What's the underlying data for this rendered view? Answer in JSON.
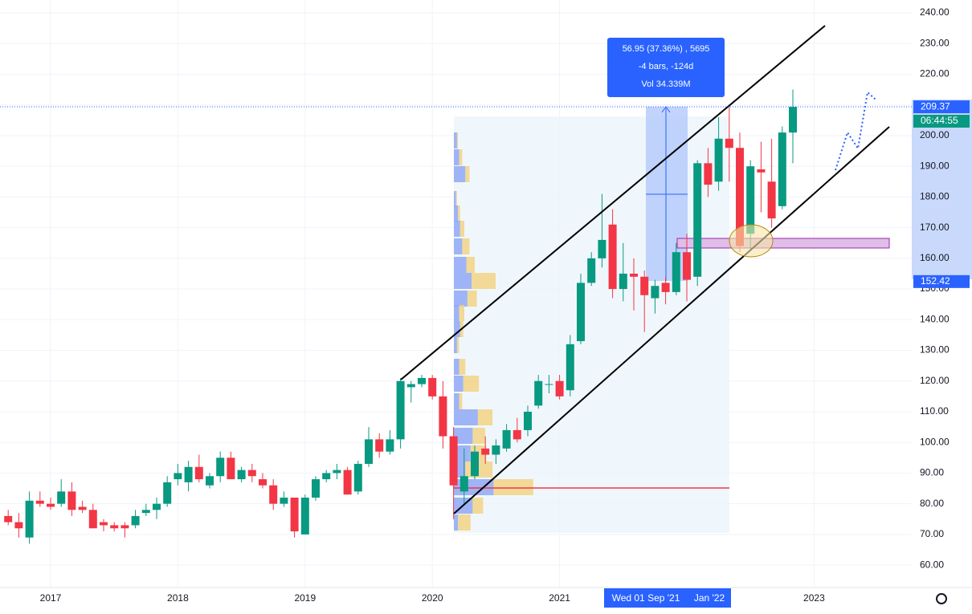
{
  "chart_data": {
    "type": "candlestick",
    "x": [
      "2016-09",
      "2016-10",
      "2016-11",
      "2016-12",
      "2017-01",
      "2017-02",
      "2017-03",
      "2017-04",
      "2017-05",
      "2017-06",
      "2017-07",
      "2017-08",
      "2017-09",
      "2017-10",
      "2017-11",
      "2017-12",
      "2018-01",
      "2018-02",
      "2018-03",
      "2018-04",
      "2018-05",
      "2018-06",
      "2018-07",
      "2018-08",
      "2018-09",
      "2018-10",
      "2018-11",
      "2018-12",
      "2019-01",
      "2019-02",
      "2019-03",
      "2019-04",
      "2019-05",
      "2019-06",
      "2019-07",
      "2019-08",
      "2019-09",
      "2019-10",
      "2019-11",
      "2019-12",
      "2020-01",
      "2020-02",
      "2020-03",
      "2020-04",
      "2020-05",
      "2020-06",
      "2020-07",
      "2020-08",
      "2020-09",
      "2020-10",
      "2020-11",
      "2020-12",
      "2021-01",
      "2021-02",
      "2021-03",
      "2021-04",
      "2021-05",
      "2021-06",
      "2021-07",
      "2021-08",
      "2021-09",
      "2021-10",
      "2021-11",
      "2021-12",
      "2022-01",
      "2022-02",
      "2022-03",
      "2022-04",
      "2022-05",
      "2022-06",
      "2022-07",
      "2022-08",
      "2022-09",
      "2022-10",
      "2022-11"
    ],
    "open": [
      76,
      74,
      69,
      81,
      80,
      80,
      84,
      79,
      78,
      74,
      73,
      73,
      73,
      77,
      78,
      80,
      88,
      87,
      92,
      86,
      89,
      95,
      88,
      91,
      88,
      86,
      80,
      82,
      70,
      82,
      88,
      90,
      91,
      84,
      93,
      101,
      97,
      101,
      118,
      119,
      121,
      115,
      102,
      84,
      89,
      98,
      96,
      98,
      104,
      104,
      112,
      119,
      120,
      117,
      133,
      152,
      160,
      171,
      150,
      155,
      154,
      147,
      152,
      149,
      162,
      154,
      191,
      185,
      199,
      196,
      168,
      189,
      185,
      177,
      201
    ],
    "high": [
      78,
      77,
      84,
      84,
      82,
      88,
      87,
      81,
      80,
      75,
      74,
      74,
      78,
      80,
      82,
      89,
      93,
      94,
      96,
      90,
      97,
      97,
      92,
      93,
      90,
      88,
      84,
      82,
      83,
      89,
      91,
      93,
      92,
      94,
      105,
      103,
      104,
      121,
      120,
      122,
      122,
      120,
      105,
      98,
      99,
      102,
      101,
      106,
      108,
      112,
      122,
      122,
      122,
      135,
      155,
      162,
      181,
      176,
      165,
      160,
      156,
      153,
      154,
      165,
      168,
      192,
      196,
      206,
      210,
      201,
      192,
      198,
      199,
      203,
      215
    ],
    "low": [
      73,
      69,
      67,
      79,
      78,
      79,
      76,
      77,
      72,
      71,
      71,
      69,
      72,
      76,
      75,
      79,
      86,
      84,
      87,
      85,
      87,
      88,
      87,
      87,
      85,
      78,
      79,
      69,
      70,
      81,
      87,
      88,
      83,
      83,
      92,
      95,
      96,
      98,
      113,
      118,
      114,
      98,
      75,
      80,
      88,
      93,
      93,
      97,
      100,
      102,
      111,
      116,
      114,
      115,
      132,
      151,
      157,
      147,
      146,
      143,
      136,
      142,
      145,
      148,
      146,
      151,
      180,
      182,
      185,
      162,
      163,
      175,
      170,
      176,
      191
    ],
    "close": [
      74,
      72,
      81,
      80,
      79,
      84,
      78,
      78,
      72,
      73,
      72,
      72,
      76,
      78,
      80,
      87,
      90,
      92,
      88,
      89,
      95,
      88,
      91,
      89,
      86,
      80,
      82,
      71,
      82,
      88,
      90,
      91,
      83,
      93,
      101,
      97,
      101,
      120,
      119,
      121,
      115,
      102,
      86,
      89,
      97,
      96,
      99,
      104,
      101,
      110,
      120,
      119,
      115,
      132,
      152,
      160,
      166,
      150,
      155,
      154,
      148,
      151,
      149,
      162,
      153,
      191,
      184,
      199,
      196,
      164,
      190,
      188,
      173,
      201,
      209.37
    ],
    "up_color": "#089981",
    "down_color": "#f23645",
    "ylim": [
      52.7,
      244.2
    ],
    "yticks": [
      {
        "value": 60,
        "label": "60.00"
      },
      {
        "value": 70,
        "label": "70.00"
      },
      {
        "value": 80,
        "label": "80.00"
      },
      {
        "value": 90,
        "label": "90.00"
      },
      {
        "value": 100,
        "label": "100.00"
      },
      {
        "value": 110,
        "label": "110.00"
      },
      {
        "value": 120,
        "label": "120.00"
      },
      {
        "value": 130,
        "label": "130.00"
      },
      {
        "value": 140,
        "label": "140.00"
      },
      {
        "value": 150,
        "label": "150.00"
      },
      {
        "value": 160,
        "label": "160.00"
      },
      {
        "value": 170,
        "label": "170.00"
      },
      {
        "value": 180,
        "label": "180.00"
      },
      {
        "value": 190,
        "label": "190.00"
      },
      {
        "value": 200,
        "label": "200.00"
      },
      {
        "value": 210,
        "label": "210.00"
      },
      {
        "value": 220,
        "label": "220.00"
      },
      {
        "value": 230,
        "label": "230.00"
      },
      {
        "value": 240,
        "label": "240.00"
      }
    ],
    "xticks": [
      2017,
      2018,
      2019,
      2020,
      2021,
      2023
    ],
    "grid": true,
    "measure": {
      "line1": "56.95 (37.36%) , 5695",
      "line2": "-4 bars, -124d",
      "line3": "Vol 34.339M"
    },
    "price_labels": [
      {
        "value": 209.37,
        "label": "209.37"
      },
      {
        "value": 152.42,
        "label": "152.42"
      }
    ],
    "countdown": "06:44:55",
    "crosshair_x_label": "Wed 01 Sep '21",
    "x_label_near": "Jan '22"
  }
}
